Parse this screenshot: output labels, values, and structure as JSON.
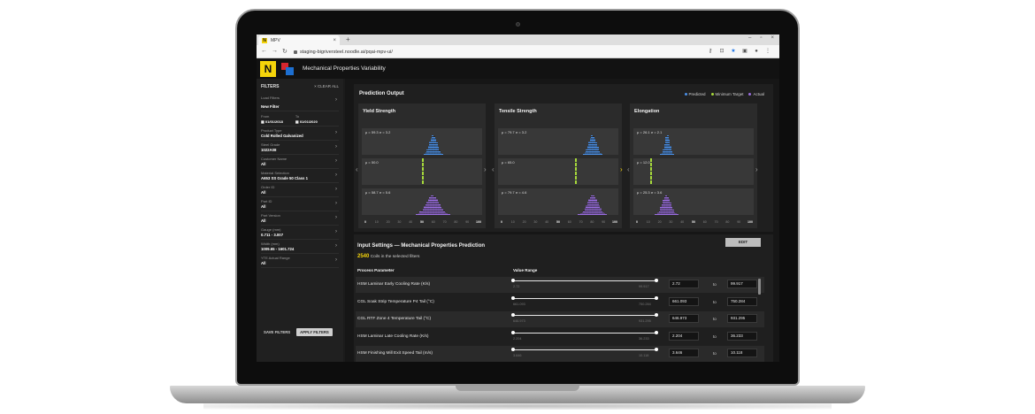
{
  "browser": {
    "tab_title": "MPV",
    "url": "staging-bigriversteel.noodle.ai/pqai-mpv-ui/"
  },
  "app": {
    "logo_letter": "N",
    "title": "Mechanical Properties Variability"
  },
  "sidebar": {
    "header": "FILTERS",
    "clear_all": "× CLEAR ALL",
    "load_filters": {
      "label": "Load Filters",
      "value": "New Filter"
    },
    "from_label": "From",
    "to_label": "To",
    "from_date": "01/01/2018",
    "to_date": "01/01/2020",
    "filters": [
      {
        "label": "Product Type",
        "value": "Cold Rolled Galvanized"
      },
      {
        "label": "Steel Grade",
        "value": "1022A08"
      },
      {
        "label": "Customer Name",
        "value": "All"
      },
      {
        "label": "Material Selection",
        "value": "A653 SS Grade 50 Class 1"
      },
      {
        "label": "Order ID",
        "value": "All"
      },
      {
        "label": "Part ID",
        "value": "All"
      },
      {
        "label": "Part Version",
        "value": "All"
      },
      {
        "label": "Gauge (mm)",
        "value": "0.711 - 3.007"
      },
      {
        "label": "Width (mm)",
        "value": "1009.65 - 1601.724"
      },
      {
        "label": "YTE Actual Range",
        "value": "All"
      }
    ],
    "save_filters": "SAVE FILTERS",
    "apply_filters": "APPLY FILTERS"
  },
  "prediction": {
    "title": "Prediction Output",
    "legend": [
      {
        "label": "Predicted",
        "color": "#4a8fe6"
      },
      {
        "label": "Minimum Target",
        "color": "#a6d93b"
      },
      {
        "label": "Actual",
        "color": "#9a6de0"
      }
    ],
    "axis_ticks": [
      "0",
      "10",
      "20",
      "30",
      "40",
      "50",
      "60",
      "70",
      "80",
      "90",
      "100"
    ],
    "cards": [
      {
        "title": "Yield Strength",
        "predicted_stats": "μ = 59.3  σ = 3.2",
        "target_stats": "μ = 50.0",
        "actual_stats": "μ = 58.7  σ = 5.6",
        "predicted_mean": 59.3,
        "predicted_sd": 3.2,
        "target": 50.0,
        "actual_mean": 58.7,
        "actual_sd": 5.6
      },
      {
        "title": "Tensile Strength",
        "predicted_stats": "μ = 79.7  σ = 3.2",
        "target_stats": "μ = 65.0",
        "actual_stats": "μ = 79.7  σ = 4.6",
        "predicted_mean": 79.7,
        "predicted_sd": 3.2,
        "target": 65.0,
        "actual_mean": 79.7,
        "actual_sd": 4.6
      },
      {
        "title": "Elongation",
        "predicted_stats": "μ = 26.1  σ = 2.1",
        "target_stats": "μ = 12.0",
        "actual_stats": "μ = 25.3  σ = 3.6",
        "predicted_mean": 26.1,
        "predicted_sd": 2.1,
        "target": 12.0,
        "actual_mean": 25.3,
        "actual_sd": 3.6
      }
    ]
  },
  "inputs": {
    "title": "Input Settings — Mechanical Properties Prediction",
    "coil_count": "2540",
    "coil_text": "Coils in the selected filters",
    "edit": "EDIT",
    "col_param": "Process Parameter",
    "col_range": "Value Range",
    "to_word": "to",
    "rows": [
      {
        "name": "HSM Laminar Early Cooling Rate (K/s)",
        "min": "2.72",
        "max": "99.917",
        "scale_lo": "2.72",
        "scale_hi": "99.917"
      },
      {
        "name": "CGL Soak Strip Temperature P4 Tail (°C)",
        "min": "661.093",
        "max": "750.284",
        "scale_lo": "661.093",
        "scale_hi": "750.284"
      },
      {
        "name": "CGL RTF Zone 4 Temperature Tail (°C)",
        "min": "646.973",
        "max": "931.295",
        "scale_lo": "646.973",
        "scale_hi": "931.295"
      },
      {
        "name": "HSM Laminar Late Cooling Rate (K/s)",
        "min": "2.204",
        "max": "36.233",
        "scale_lo": "2.204",
        "scale_hi": "36.233"
      },
      {
        "name": "HSM Finishing Mill Exit Speed Tail (m/s)",
        "min": "3.646",
        "max": "10.118",
        "scale_lo": "3.646",
        "scale_hi": "10.118"
      }
    ]
  }
}
